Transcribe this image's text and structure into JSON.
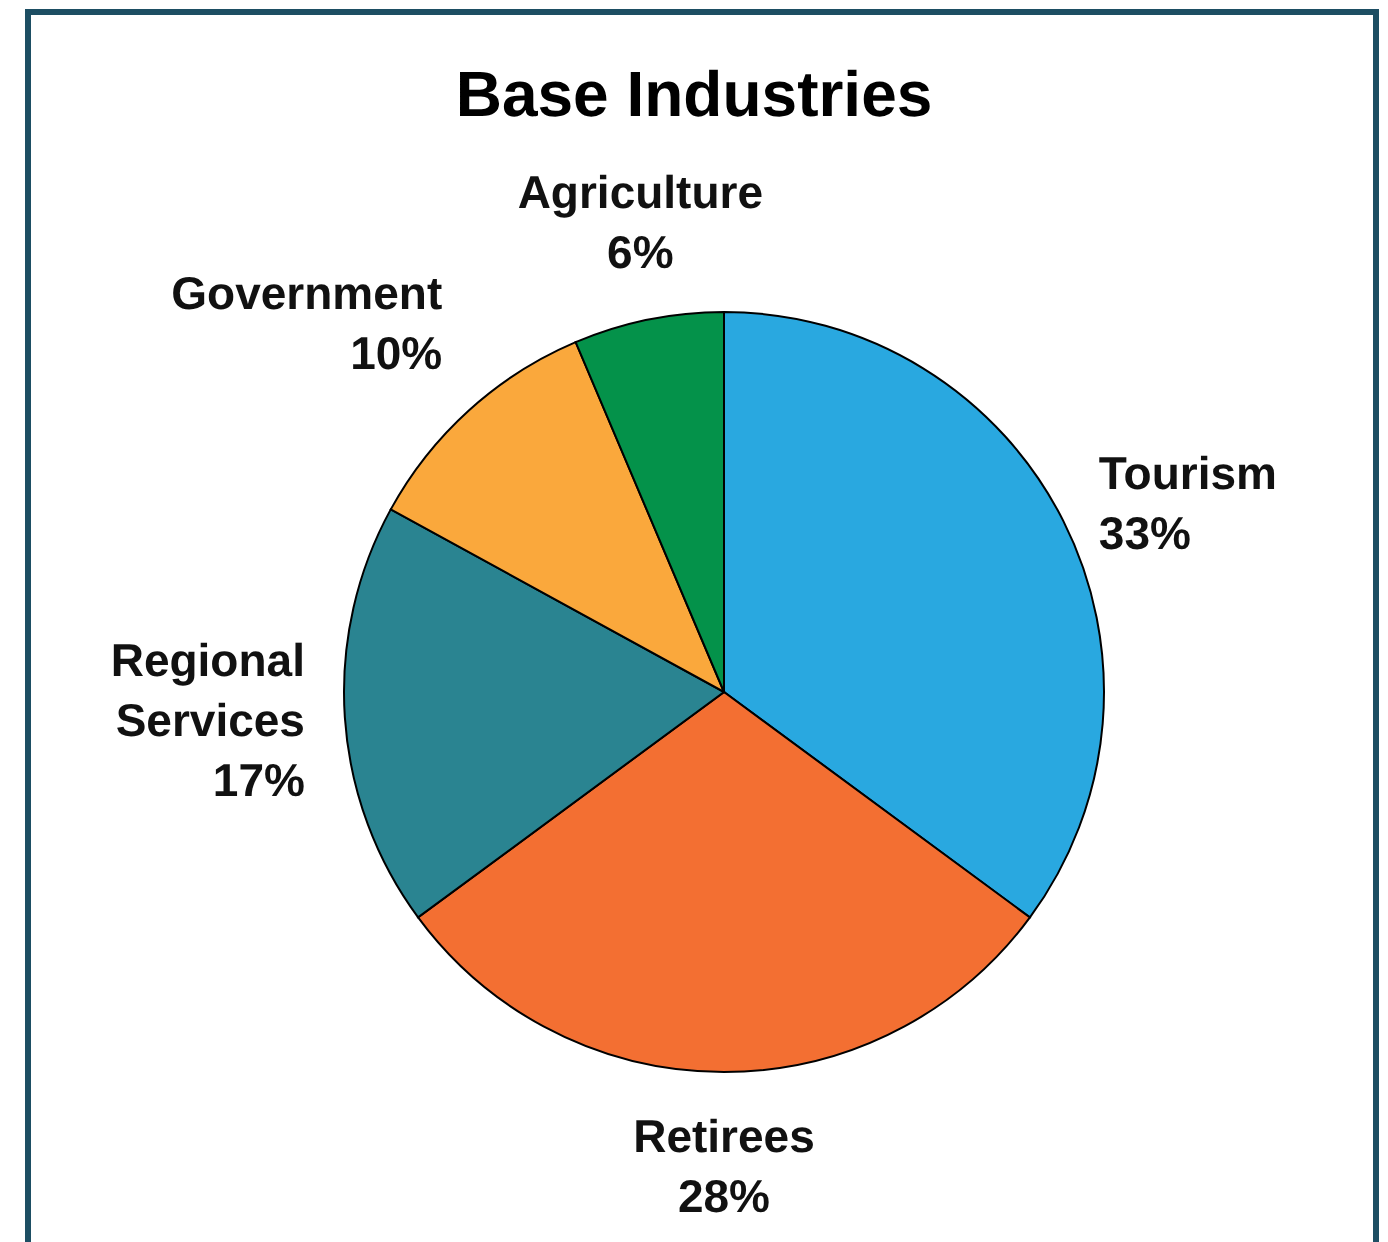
{
  "chart_data": {
    "type": "pie",
    "title": "Base Industries",
    "categories": [
      "Tourism",
      "Retirees",
      "Regional Services",
      "Government",
      "Agriculture"
    ],
    "values": [
      33,
      28,
      17,
      10,
      6
    ],
    "value_labels": [
      "33%",
      "28%",
      "17%",
      "10%",
      "6%"
    ],
    "colors": [
      "#29a8e0",
      "#f36f32",
      "#2a8491",
      "#faa83c",
      "#04924a"
    ]
  }
}
